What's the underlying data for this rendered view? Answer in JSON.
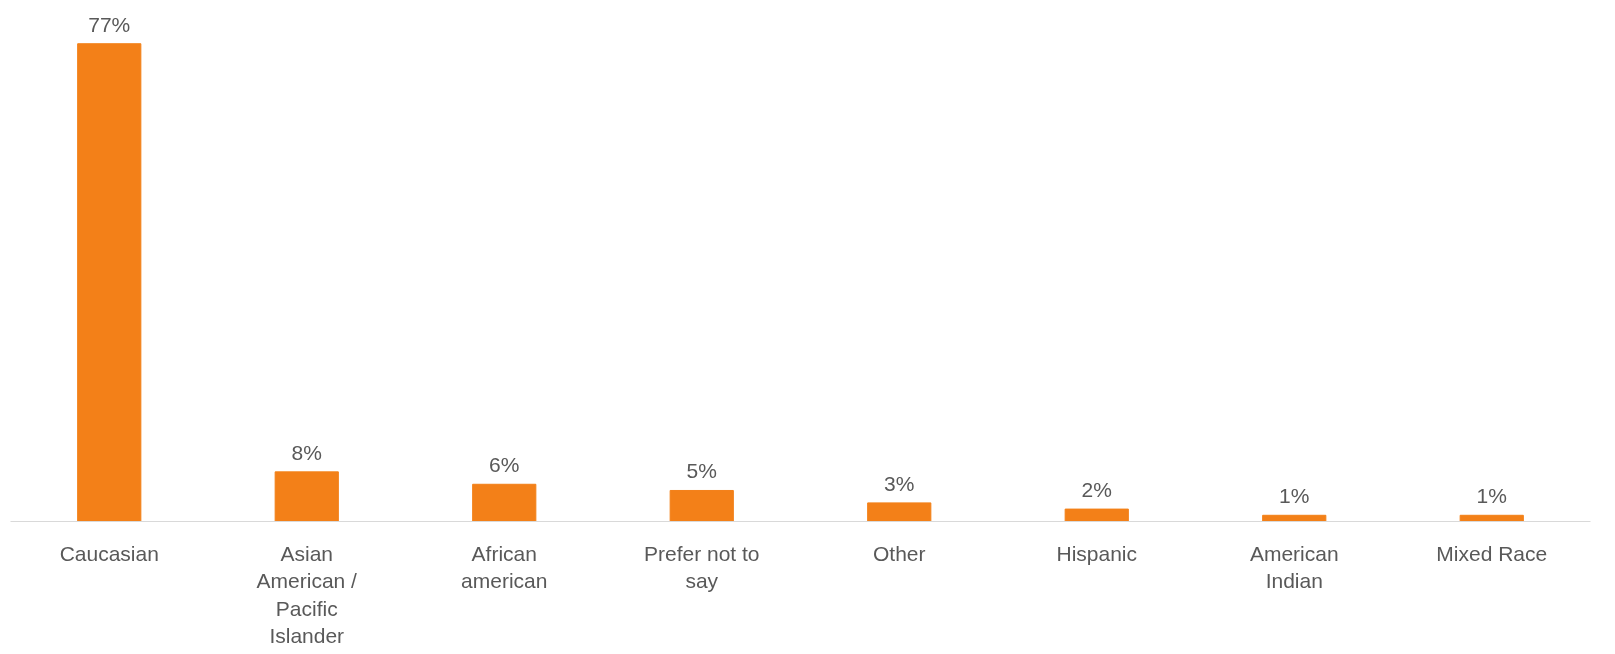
{
  "chart_data": {
    "type": "bar",
    "categories": [
      "Caucasian",
      "Asian American / Pacific Islander",
      "African american",
      "Prefer not to say",
      "Other",
      "Hispanic",
      "American Indian",
      "Mixed Race"
    ],
    "values": [
      77,
      8,
      6,
      5,
      3,
      2,
      1,
      1
    ],
    "value_labels": [
      "77%",
      "8%",
      "6%",
      "5%",
      "3%",
      "2%",
      "1%",
      "1%"
    ],
    "color": "#f38018",
    "grid": false
  }
}
